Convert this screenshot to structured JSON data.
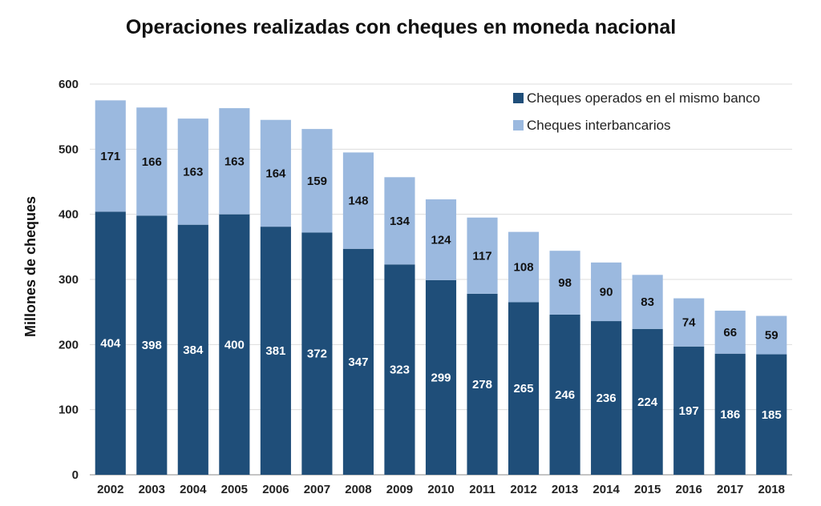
{
  "chart_data": {
    "type": "bar",
    "stacked": true,
    "title": "Operaciones realizadas con cheques en moneda nacional",
    "xlabel": "",
    "ylabel": "Millones de cheques",
    "ylim": [
      0,
      600
    ],
    "yticks": [
      0,
      100,
      200,
      300,
      400,
      500,
      600
    ],
    "grid": true,
    "legend_position": "top-right",
    "categories": [
      "2002",
      "2003",
      "2004",
      "2005",
      "2006",
      "2007",
      "2008",
      "2009",
      "2010",
      "2011",
      "2012",
      "2013",
      "2014",
      "2015",
      "2016",
      "2017",
      "2018"
    ],
    "series": [
      {
        "name": "Cheques operados en el mismo banco",
        "color": "#1f4e79",
        "values": [
          404,
          398,
          384,
          400,
          381,
          372,
          347,
          323,
          299,
          278,
          265,
          246,
          236,
          224,
          197,
          186,
          185
        ]
      },
      {
        "name": "Cheques interbancarios",
        "color": "#9bb9df",
        "values": [
          171,
          166,
          163,
          163,
          164,
          159,
          148,
          134,
          124,
          117,
          108,
          98,
          90,
          83,
          74,
          66,
          59
        ]
      }
    ]
  }
}
